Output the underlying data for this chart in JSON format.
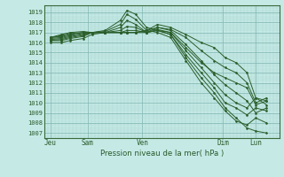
{
  "title": "Pression niveau de la mer( hPa )",
  "ylabel_values": [
    1007,
    1008,
    1009,
    1010,
    1011,
    1012,
    1013,
    1014,
    1015,
    1016,
    1017,
    1018,
    1019
  ],
  "ylim": [
    1006.5,
    1019.7
  ],
  "xlim": [
    0.0,
    1.08
  ],
  "xtick_labels": [
    "Jeu",
    "Sam",
    "Ven",
    "Dim",
    "Lun"
  ],
  "xtick_positions": [
    0.03,
    0.2,
    0.45,
    0.82,
    0.97
  ],
  "bg_color": "#c5eae6",
  "grid_minor_color": "#aad4d0",
  "grid_major_color": "#88bbb7",
  "line_color": "#2a5e2a",
  "lines": [
    {
      "x": [
        0.03,
        0.08,
        0.12,
        0.18,
        0.22,
        0.28,
        0.35,
        0.38,
        0.42,
        0.47,
        0.52,
        0.58,
        0.65,
        0.72,
        0.78,
        0.83,
        0.88,
        0.93,
        0.97,
        1.02
      ],
      "y": [
        1016.5,
        1016.8,
        1017.0,
        1017.1,
        1017.0,
        1017.2,
        1018.2,
        1019.2,
        1018.8,
        1017.5,
        1017.2,
        1016.8,
        1014.5,
        1012.5,
        1011.0,
        1009.5,
        1008.5,
        1007.5,
        1007.2,
        1007.0
      ]
    },
    {
      "x": [
        0.03,
        0.08,
        0.12,
        0.18,
        0.22,
        0.28,
        0.35,
        0.38,
        0.42,
        0.47,
        0.52,
        0.58,
        0.65,
        0.72,
        0.78,
        0.83,
        0.88,
        0.93,
        0.97,
        1.02
      ],
      "y": [
        1016.5,
        1016.7,
        1016.9,
        1017.0,
        1017.0,
        1017.1,
        1017.8,
        1018.8,
        1018.3,
        1017.2,
        1017.0,
        1016.5,
        1014.2,
        1012.0,
        1010.5,
        1009.2,
        1008.2,
        1007.8,
        1008.5,
        1008.0
      ]
    },
    {
      "x": [
        0.03,
        0.08,
        0.12,
        0.18,
        0.22,
        0.28,
        0.35,
        0.38,
        0.42,
        0.47,
        0.52,
        0.58,
        0.65,
        0.72,
        0.78,
        0.83,
        0.88,
        0.93,
        0.97,
        1.02
      ],
      "y": [
        1016.5,
        1016.6,
        1016.8,
        1017.0,
        1017.0,
        1017.0,
        1017.5,
        1018.2,
        1017.8,
        1017.0,
        1017.2,
        1016.8,
        1014.8,
        1013.0,
        1011.5,
        1010.0,
        1009.5,
        1008.8,
        1009.5,
        1009.2
      ]
    },
    {
      "x": [
        0.03,
        0.08,
        0.12,
        0.18,
        0.22,
        0.28,
        0.35,
        0.38,
        0.42,
        0.47,
        0.52,
        0.58,
        0.65,
        0.72,
        0.78,
        0.83,
        0.88,
        0.93,
        0.97,
        1.02
      ],
      "y": [
        1016.4,
        1016.5,
        1016.7,
        1016.9,
        1017.0,
        1017.0,
        1017.2,
        1017.6,
        1017.5,
        1017.0,
        1017.3,
        1017.0,
        1015.2,
        1013.5,
        1012.0,
        1010.8,
        1010.0,
        1009.5,
        1010.5,
        1010.2
      ]
    },
    {
      "x": [
        0.03,
        0.08,
        0.12,
        0.18,
        0.22,
        0.28,
        0.35,
        0.38,
        0.42,
        0.47,
        0.52,
        0.58,
        0.65,
        0.72,
        0.78,
        0.83,
        0.88,
        0.93,
        0.97,
        1.02
      ],
      "y": [
        1016.3,
        1016.4,
        1016.6,
        1016.8,
        1017.0,
        1017.0,
        1017.0,
        1017.2,
        1017.2,
        1017.0,
        1017.5,
        1017.2,
        1015.8,
        1014.2,
        1012.8,
        1011.8,
        1011.0,
        1010.2,
        1009.0,
        1009.5
      ]
    },
    {
      "x": [
        0.03,
        0.08,
        0.12,
        0.18,
        0.22,
        0.28,
        0.35,
        0.38,
        0.42,
        0.47,
        0.52,
        0.58,
        0.65,
        0.72,
        0.78,
        0.83,
        0.88,
        0.93,
        0.97,
        1.02
      ],
      "y": [
        1016.2,
        1016.3,
        1016.5,
        1016.7,
        1017.0,
        1017.0,
        1017.0,
        1017.0,
        1017.0,
        1017.0,
        1017.2,
        1017.0,
        1015.5,
        1014.0,
        1013.0,
        1012.5,
        1012.0,
        1011.5,
        1009.8,
        1010.2
      ]
    },
    {
      "x": [
        0.03,
        0.08,
        0.12,
        0.18,
        0.22,
        0.28,
        0.35,
        0.38,
        0.42,
        0.47,
        0.52,
        0.58,
        0.65,
        0.72,
        0.78,
        0.83,
        0.88,
        0.93,
        0.97,
        1.02
      ],
      "y": [
        1016.2,
        1016.2,
        1016.4,
        1016.6,
        1017.0,
        1017.0,
        1017.0,
        1017.0,
        1017.0,
        1017.2,
        1017.5,
        1017.3,
        1016.5,
        1015.2,
        1014.2,
        1013.5,
        1013.0,
        1012.0,
        1010.0,
        1010.5
      ]
    },
    {
      "x": [
        0.03,
        0.08,
        0.12,
        0.18,
        0.22,
        0.28,
        0.35,
        0.38,
        0.42,
        0.47,
        0.52,
        0.58,
        0.65,
        0.72,
        0.78,
        0.83,
        0.88,
        0.93,
        0.97,
        1.02
      ],
      "y": [
        1016.0,
        1016.0,
        1016.2,
        1016.4,
        1016.8,
        1017.0,
        1017.0,
        1017.0,
        1017.0,
        1017.2,
        1017.8,
        1017.5,
        1016.8,
        1016.0,
        1015.5,
        1014.5,
        1014.0,
        1013.0,
        1010.5,
        1009.8
      ]
    }
  ]
}
